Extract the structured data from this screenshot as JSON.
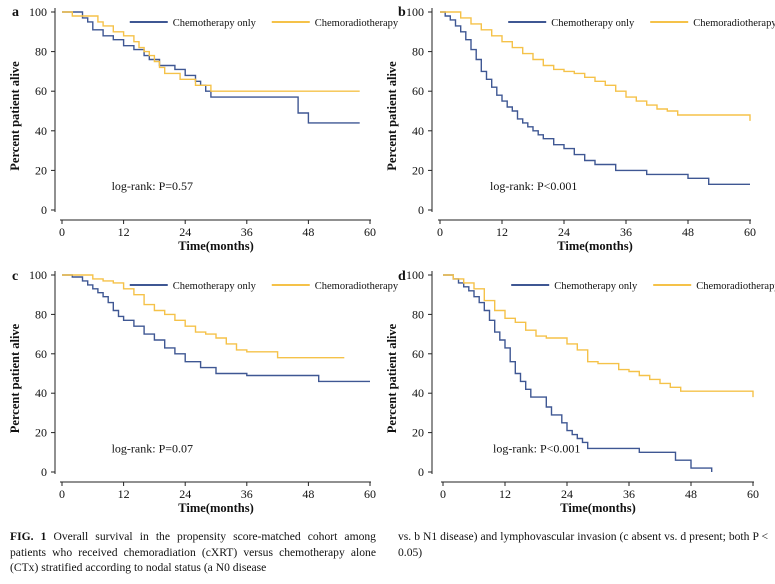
{
  "chart_data": [
    {
      "type": "line",
      "panel": "a",
      "xlabel": "Time(months)",
      "ylabel": "Percent patient alive",
      "xlim": [
        0,
        60
      ],
      "ylim": [
        0,
        100
      ],
      "xticks": [
        0,
        12,
        24,
        36,
        48,
        60
      ],
      "yticks": [
        0,
        20,
        40,
        60,
        80,
        100
      ],
      "grid": false,
      "legend": "top-right",
      "annotation": "log-rank: P=0.57",
      "series": [
        {
          "name": "Chemotherapy only",
          "color": "#3f5793",
          "x": [
            0,
            3,
            4,
            5,
            6,
            7,
            8,
            9,
            10,
            11,
            12,
            14,
            15,
            16,
            17,
            18,
            19,
            20,
            22,
            24,
            25,
            26,
            27,
            28,
            29,
            44,
            46,
            48,
            50,
            58
          ],
          "y": [
            100,
            100,
            97,
            95,
            91,
            91,
            88,
            88,
            86,
            86,
            83,
            81,
            81,
            78,
            76,
            76,
            73,
            73,
            71,
            68,
            68,
            65,
            63,
            60,
            57,
            57,
            49,
            44,
            44,
            44
          ]
        },
        {
          "name": "Chemoradiotherapy",
          "color": "#f5c249",
          "x": [
            0,
            1,
            2,
            5,
            7,
            8,
            10,
            12,
            14,
            15,
            16,
            17,
            18,
            19,
            20,
            23,
            24,
            26,
            29,
            58
          ],
          "y": [
            100,
            100,
            98,
            98,
            95,
            93,
            90,
            88,
            85,
            82,
            80,
            78,
            75,
            72,
            69,
            66,
            66,
            63,
            60,
            60
          ]
        }
      ]
    },
    {
      "type": "line",
      "panel": "b",
      "xlabel": "Time(months)",
      "ylabel": "Percent patient alive",
      "xlim": [
        0,
        60
      ],
      "ylim": [
        0,
        100
      ],
      "xticks": [
        0,
        12,
        24,
        36,
        48,
        60
      ],
      "yticks": [
        0,
        20,
        40,
        60,
        80,
        100
      ],
      "grid": false,
      "legend": "top-right",
      "annotation": "log-rank: P<0.001",
      "series": [
        {
          "name": "Chemotherapy only",
          "color": "#3f5793",
          "x": [
            0,
            1,
            2,
            3,
            4,
            5,
            6,
            7,
            8,
            9,
            10,
            11,
            12,
            13,
            14,
            15,
            16,
            17,
            18,
            19,
            20,
            22,
            24,
            26,
            28,
            30,
            34,
            40,
            48,
            52,
            60
          ],
          "y": [
            100,
            98,
            96,
            93,
            90,
            86,
            81,
            76,
            70,
            66,
            62,
            58,
            55,
            52,
            50,
            46,
            44,
            42,
            40,
            38,
            36,
            33,
            31,
            28,
            25,
            23,
            20,
            18,
            16,
            13,
            13
          ]
        },
        {
          "name": "Chemoradiotherapy",
          "color": "#f5c249",
          "x": [
            0,
            2,
            4,
            6,
            8,
            10,
            12,
            14,
            16,
            18,
            20,
            22,
            24,
            26,
            28,
            30,
            32,
            34,
            36,
            38,
            40,
            42,
            44,
            46,
            58,
            60
          ],
          "y": [
            100,
            100,
            97,
            94,
            91,
            88,
            85,
            82,
            79,
            76,
            73,
            71,
            70,
            69,
            67,
            65,
            63,
            60,
            57,
            55,
            53,
            51,
            50,
            48,
            48,
            45
          ]
        }
      ]
    },
    {
      "type": "line",
      "panel": "c",
      "xlabel": "Time(months)",
      "ylabel": "Percent patient alive",
      "xlim": [
        0,
        60
      ],
      "ylim": [
        0,
        100
      ],
      "xticks": [
        0,
        12,
        24,
        36,
        48,
        60
      ],
      "yticks": [
        0,
        20,
        40,
        60,
        80,
        100
      ],
      "grid": false,
      "legend": "top-right",
      "annotation": "log-rank: P=0.07",
      "series": [
        {
          "name": "Chemotherapy only",
          "color": "#3f5793",
          "x": [
            0,
            2,
            4,
            5,
            6,
            7,
            8,
            9,
            10,
            11,
            12,
            14,
            16,
            18,
            20,
            22,
            24,
            27,
            30,
            36,
            49,
            50,
            60
          ],
          "y": [
            100,
            99,
            97,
            95,
            93,
            91,
            89,
            86,
            82,
            79,
            77,
            74,
            70,
            67,
            63,
            60,
            56,
            53,
            50,
            49,
            49,
            46,
            46
          ]
        },
        {
          "name": "Chemoradiotherapy",
          "color": "#f5c249",
          "x": [
            0,
            4,
            6,
            8,
            10,
            12,
            14,
            16,
            18,
            20,
            22,
            24,
            26,
            28,
            30,
            32,
            34,
            36,
            40,
            42,
            46,
            55
          ],
          "y": [
            100,
            100,
            98,
            97,
            96,
            93,
            90,
            85,
            82,
            80,
            77,
            74,
            71,
            70,
            68,
            65,
            62,
            61,
            61,
            58,
            58,
            58
          ]
        }
      ]
    },
    {
      "type": "line",
      "panel": "d",
      "xlabel": "Time(months)",
      "ylabel": "Percent patient alive",
      "xlim": [
        0,
        60
      ],
      "ylim": [
        0,
        100
      ],
      "xticks": [
        0,
        12,
        24,
        36,
        48,
        60
      ],
      "yticks": [
        0,
        20,
        40,
        60,
        80,
        100
      ],
      "grid": false,
      "legend": "top-right",
      "annotation": "log-rank: P<0.001",
      "series": [
        {
          "name": "Chemotherapy only",
          "color": "#3f5793",
          "x": [
            0,
            2,
            3,
            4,
            5,
            6,
            7,
            8,
            9,
            10,
            11,
            12,
            13,
            14,
            15,
            16,
            17,
            20,
            21,
            23,
            24,
            25,
            26,
            27,
            28,
            38,
            45,
            48,
            52
          ],
          "y": [
            100,
            98,
            96,
            94,
            92,
            89,
            86,
            82,
            77,
            71,
            67,
            63,
            56,
            50,
            46,
            42,
            38,
            33,
            29,
            25,
            21,
            19,
            17,
            15,
            12,
            10,
            6,
            2,
            0
          ]
        },
        {
          "name": "Chemoradiotherapy",
          "color": "#f5c249",
          "x": [
            0,
            2,
            4,
            6,
            8,
            10,
            12,
            14,
            16,
            18,
            20,
            24,
            26,
            28,
            30,
            34,
            36,
            38,
            40,
            42,
            44,
            46,
            48,
            60
          ],
          "y": [
            100,
            98,
            96,
            93,
            87,
            82,
            78,
            76,
            72,
            69,
            68,
            65,
            62,
            56,
            55,
            52,
            51,
            49,
            47,
            45,
            43,
            41,
            41,
            38
          ]
        }
      ]
    }
  ],
  "caption": {
    "label": "FIG. 1",
    "left": "Overall survival in the propensity score-matched cohort among patients who received chemoradiation (cXRT) versus chemotherapy alone (CTx) stratified according to nodal status (a N0 disease",
    "right": "vs. b N1 disease) and lymphovascular invasion (c absent vs. d present; both P < 0.05)"
  }
}
